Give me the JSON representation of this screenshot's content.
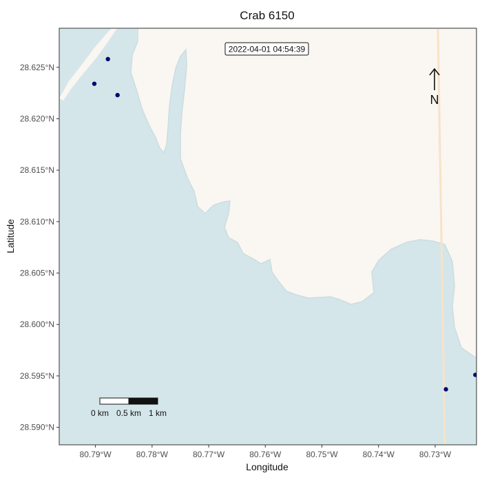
{
  "map": {
    "title": "Crab 6150",
    "timestamp": "2022-04-01 04:54:39",
    "xlabel": "Longitude",
    "ylabel": "Latitude",
    "colors": {
      "water": "#d4e6ea",
      "land": "#faf6f1",
      "point": "#000a6e",
      "road": "#f7e3c8"
    },
    "north_arrow": {
      "label": "N"
    },
    "scale_bar": {
      "labels": [
        "0 km",
        "0.5 km",
        "1 km"
      ]
    }
  },
  "chart_data": {
    "type": "scatter",
    "title": "Crab 6150",
    "xlabel": "Longitude",
    "ylabel": "Latitude",
    "xlim": [
      -80.7964,
      -80.7227
    ],
    "ylim": [
      28.5883,
      28.6288
    ],
    "x_ticks": [
      -80.79,
      -80.78,
      -80.77,
      -80.76,
      -80.75,
      -80.74,
      -80.73
    ],
    "x_tick_labels": [
      "80.79°W",
      "80.78°W",
      "80.77°W",
      "80.76°W",
      "80.75°W",
      "80.74°W",
      "80.73°W"
    ],
    "y_ticks": [
      28.59,
      28.595,
      28.6,
      28.605,
      28.61,
      28.615,
      28.62,
      28.625
    ],
    "y_tick_labels": [
      "28.590°N",
      "28.595°N",
      "28.600°N",
      "28.605°N",
      "28.610°N",
      "28.615°N",
      "28.620°N",
      "28.625°N"
    ],
    "points": [
      {
        "x": -80.7878,
        "y": 28.6258
      },
      {
        "x": -80.7902,
        "y": 28.6234
      },
      {
        "x": -80.7861,
        "y": 28.6223
      },
      {
        "x": -80.7281,
        "y": 28.5937
      },
      {
        "x": -80.7229,
        "y": 28.5951
      }
    ],
    "grid": false
  }
}
